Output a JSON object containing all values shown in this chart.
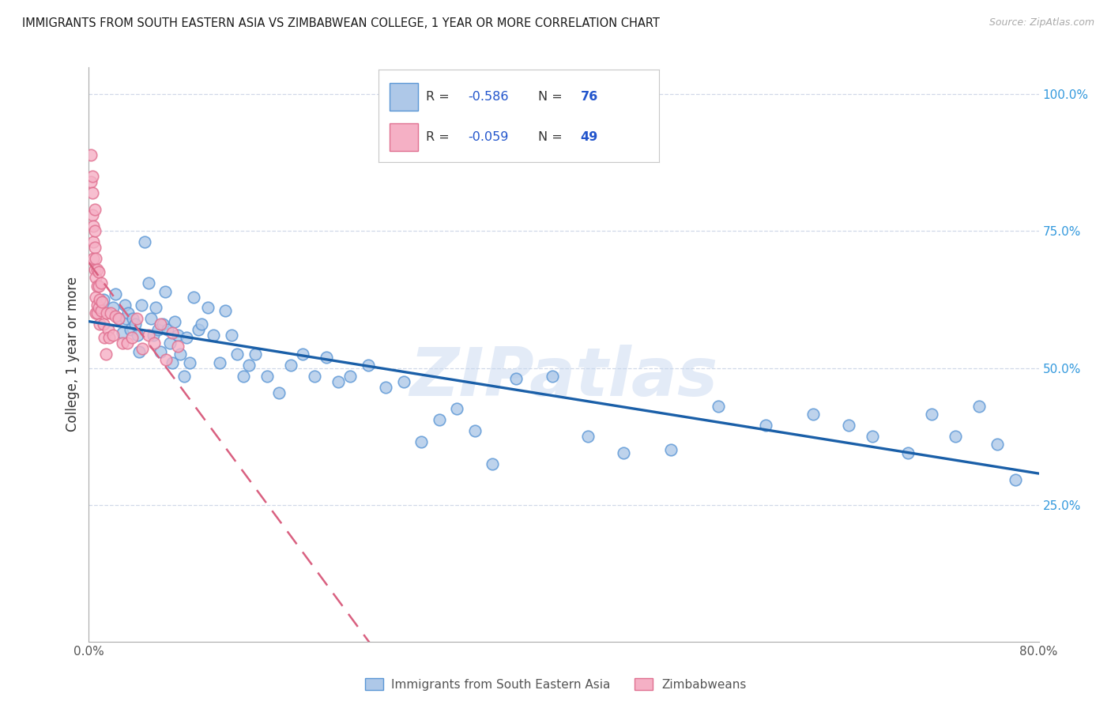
{
  "title": "IMMIGRANTS FROM SOUTH EASTERN ASIA VS ZIMBABWEAN COLLEGE, 1 YEAR OR MORE CORRELATION CHART",
  "source": "Source: ZipAtlas.com",
  "ylabel": "College, 1 year or more",
  "xlim": [
    0.0,
    0.8
  ],
  "ylim": [
    0.0,
    1.05
  ],
  "xticks": [
    0.0,
    0.1,
    0.2,
    0.3,
    0.4,
    0.5,
    0.6,
    0.7,
    0.8
  ],
  "xticklabels": [
    "0.0%",
    "",
    "",
    "",
    "",
    "",
    "",
    "",
    "80.0%"
  ],
  "ytick_vals": [
    0.25,
    0.5,
    0.75,
    1.0
  ],
  "yticklabels_right": [
    "25.0%",
    "50.0%",
    "75.0%",
    "100.0%"
  ],
  "blue_R": "-0.586",
  "blue_N": "76",
  "pink_R": "-0.059",
  "pink_N": "49",
  "blue_scatter_color": "#aec8e8",
  "blue_edge_color": "#5a96d5",
  "pink_scatter_color": "#f5b0c5",
  "pink_edge_color": "#e07090",
  "blue_line_color": "#1a5fa8",
  "pink_line_color": "#d96080",
  "watermark": "ZIPatlas",
  "legend_label_blue": "Immigrants from South Eastern Asia",
  "legend_label_pink": "Zimbabweans",
  "rv_color": "#2255cc",
  "label_color": "#333333",
  "grid_color": "#d0d8e8",
  "right_tick_color": "#3399dd",
  "blue_x": [
    0.012,
    0.02,
    0.022,
    0.025,
    0.028,
    0.03,
    0.031,
    0.033,
    0.035,
    0.037,
    0.039,
    0.041,
    0.042,
    0.044,
    0.047,
    0.05,
    0.052,
    0.054,
    0.056,
    0.058,
    0.06,
    0.062,
    0.064,
    0.066,
    0.068,
    0.07,
    0.072,
    0.075,
    0.077,
    0.08,
    0.082,
    0.085,
    0.088,
    0.092,
    0.095,
    0.1,
    0.105,
    0.11,
    0.115,
    0.12,
    0.125,
    0.13,
    0.135,
    0.14,
    0.15,
    0.16,
    0.17,
    0.18,
    0.19,
    0.2,
    0.21,
    0.22,
    0.235,
    0.25,
    0.265,
    0.28,
    0.295,
    0.31,
    0.325,
    0.34,
    0.36,
    0.39,
    0.42,
    0.45,
    0.49,
    0.53,
    0.57,
    0.61,
    0.64,
    0.66,
    0.69,
    0.71,
    0.73,
    0.75,
    0.765,
    0.78
  ],
  "blue_y": [
    0.625,
    0.61,
    0.635,
    0.59,
    0.565,
    0.615,
    0.59,
    0.6,
    0.57,
    0.59,
    0.58,
    0.56,
    0.53,
    0.615,
    0.73,
    0.655,
    0.59,
    0.56,
    0.61,
    0.57,
    0.53,
    0.58,
    0.64,
    0.57,
    0.545,
    0.51,
    0.585,
    0.56,
    0.525,
    0.485,
    0.555,
    0.51,
    0.63,
    0.57,
    0.58,
    0.61,
    0.56,
    0.51,
    0.605,
    0.56,
    0.525,
    0.485,
    0.505,
    0.525,
    0.485,
    0.455,
    0.505,
    0.525,
    0.485,
    0.52,
    0.475,
    0.485,
    0.505,
    0.465,
    0.475,
    0.365,
    0.405,
    0.425,
    0.385,
    0.325,
    0.48,
    0.485,
    0.375,
    0.345,
    0.35,
    0.43,
    0.395,
    0.415,
    0.395,
    0.375,
    0.345,
    0.415,
    0.375,
    0.43,
    0.36,
    0.295
  ],
  "pink_x": [
    0.002,
    0.002,
    0.003,
    0.003,
    0.003,
    0.004,
    0.004,
    0.004,
    0.005,
    0.005,
    0.005,
    0.005,
    0.006,
    0.006,
    0.006,
    0.006,
    0.007,
    0.007,
    0.007,
    0.007,
    0.008,
    0.008,
    0.008,
    0.009,
    0.009,
    0.01,
    0.01,
    0.011,
    0.012,
    0.013,
    0.014,
    0.015,
    0.016,
    0.017,
    0.018,
    0.02,
    0.022,
    0.025,
    0.028,
    0.032,
    0.036,
    0.04,
    0.045,
    0.05,
    0.055,
    0.06,
    0.065,
    0.07,
    0.075
  ],
  "pink_y": [
    0.89,
    0.84,
    0.82,
    0.78,
    0.85,
    0.76,
    0.73,
    0.7,
    0.75,
    0.79,
    0.72,
    0.68,
    0.7,
    0.665,
    0.63,
    0.6,
    0.68,
    0.65,
    0.615,
    0.6,
    0.675,
    0.65,
    0.61,
    0.625,
    0.58,
    0.655,
    0.605,
    0.62,
    0.58,
    0.555,
    0.525,
    0.6,
    0.57,
    0.555,
    0.6,
    0.56,
    0.595,
    0.59,
    0.545,
    0.545,
    0.555,
    0.59,
    0.535,
    0.56,
    0.545,
    0.58,
    0.515,
    0.565,
    0.54
  ]
}
